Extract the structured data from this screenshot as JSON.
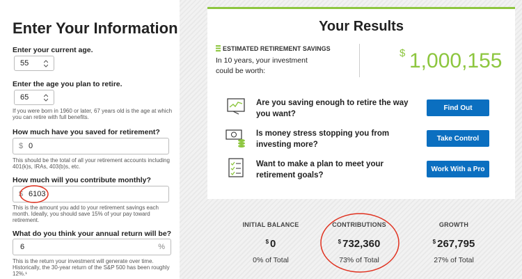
{
  "form": {
    "title": "Enter Your Information",
    "fields": [
      {
        "label": "Enter your current age.",
        "value": "55"
      },
      {
        "label": "Enter the age you plan to retire.",
        "value": "65",
        "help": "If you were born in 1960 or later, 67 years old is the age at which you can retire with full benefits."
      },
      {
        "label": "How much have you saved for retirement?",
        "prefix": "$",
        "value": "0",
        "help": "This should be the total of all your retirement accounts including 401(k)s, IRAs, 403(b)s, etc."
      },
      {
        "label": "How much will you contribute monthly?",
        "prefix": "$",
        "value": "6103",
        "help": "This is the amount you add to your retirement savings each month. Ideally, you should save 15% of your pay toward retirement."
      },
      {
        "label": "What do you think your annual return will be?",
        "value": "6",
        "suffix": "%",
        "help": "This is the return your investment will generate over time. Historically, the 30-year return of the S&P 500 has been roughly 12%.¹"
      }
    ]
  },
  "results": {
    "title": "Your Results",
    "estimate": {
      "label": "ESTIMATED RETIREMENT SAVINGS",
      "text": "In 10 years, your investment could be worth:",
      "currency": "$",
      "amount": "1,000,155"
    },
    "prompts": [
      {
        "question": "Are you saving enough to retire the way you want?",
        "button": "Find Out"
      },
      {
        "question": "Is money stress stopping you from investing more?",
        "button": "Take Control"
      },
      {
        "question": "Want to make a plan to meet your retirement goals?",
        "button": "Work With a Pro"
      }
    ],
    "summary": [
      {
        "label": "INITIAL BALANCE",
        "currency": "$",
        "amount": "0",
        "share": "0% of Total"
      },
      {
        "label": "CONTRIBUTIONS",
        "currency": "$",
        "amount": "732,360",
        "share": "73% of Total"
      },
      {
        "label": "GROWTH",
        "currency": "$",
        "amount": "267,795",
        "share": "27% of Total"
      }
    ]
  }
}
